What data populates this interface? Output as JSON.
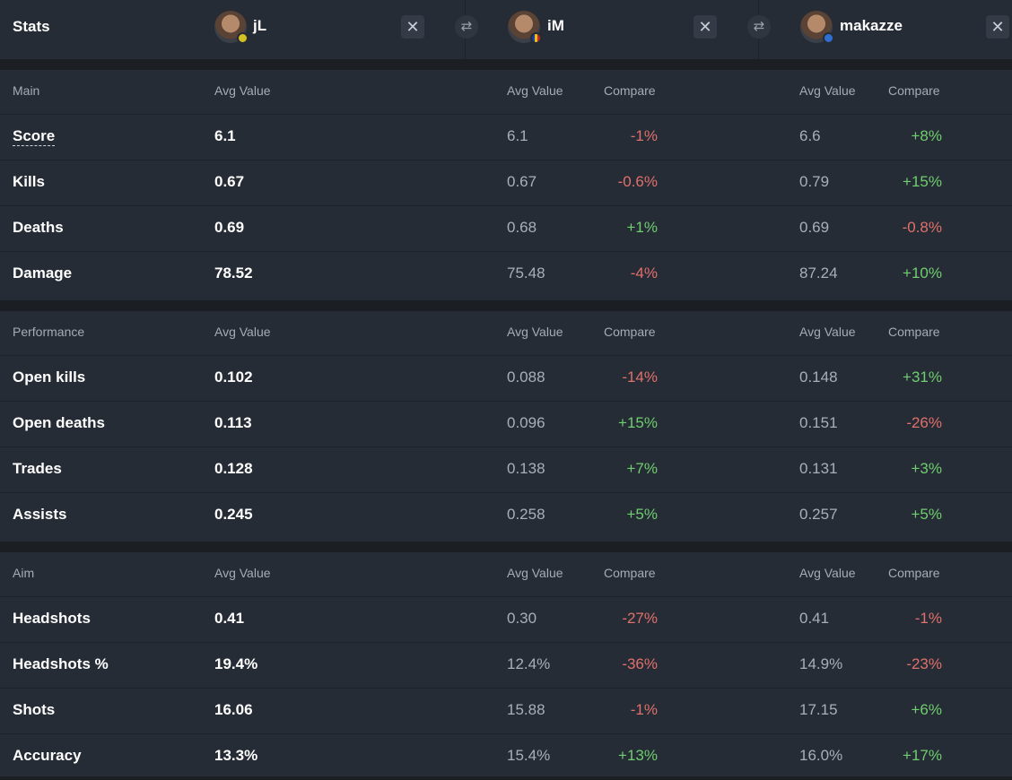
{
  "header": {
    "title": "Stats",
    "players": [
      {
        "name": "jL",
        "flag_color": "#d4c021"
      },
      {
        "name": "iM",
        "flag_color": "#e8c21a"
      },
      {
        "name": "makazze",
        "flag_color": "#2f6fd1"
      }
    ],
    "close_symbol": "✕",
    "swap_symbol": "⇄"
  },
  "sections": [
    {
      "name": "Main",
      "col_avg": "Avg Value",
      "col_compare": "Compare",
      "rows": [
        {
          "stat": "Score",
          "v1": "6.1",
          "v2": "6.1",
          "c2": "-1%",
          "v3": "6.6",
          "c3": "+8%"
        },
        {
          "stat": "Kills",
          "v1": "0.67",
          "v2": "0.67",
          "c2": "-0.6%",
          "v3": "0.79",
          "c3": "+15%"
        },
        {
          "stat": "Deaths",
          "v1": "0.69",
          "v2": "0.68",
          "c2": "+1%",
          "v3": "0.69",
          "c3": "-0.8%"
        },
        {
          "stat": "Damage",
          "v1": "78.52",
          "v2": "75.48",
          "c2": "-4%",
          "v3": "87.24",
          "c3": "+10%"
        }
      ]
    },
    {
      "name": "Performance",
      "col_avg": "Avg Value",
      "col_compare": "Compare",
      "rows": [
        {
          "stat": "Open kills",
          "v1": "0.102",
          "v2": "0.088",
          "c2": "-14%",
          "v3": "0.148",
          "c3": "+31%"
        },
        {
          "stat": "Open deaths",
          "v1": "0.113",
          "v2": "0.096",
          "c2": "+15%",
          "v3": "0.151",
          "c3": "-26%"
        },
        {
          "stat": "Trades",
          "v1": "0.128",
          "v2": "0.138",
          "c2": "+7%",
          "v3": "0.131",
          "c3": "+3%"
        },
        {
          "stat": "Assists",
          "v1": "0.245",
          "v2": "0.258",
          "c2": "+5%",
          "v3": "0.257",
          "c3": "+5%"
        }
      ]
    },
    {
      "name": "Aim",
      "col_avg": "Avg Value",
      "col_compare": "Compare",
      "rows": [
        {
          "stat": "Headshots",
          "v1": "0.41",
          "v2": "0.30",
          "c2": "-27%",
          "v3": "0.41",
          "c3": "-1%"
        },
        {
          "stat": "Headshots %",
          "v1": "19.4%",
          "v2": "12.4%",
          "c2": "-36%",
          "v3": "14.9%",
          "c3": "-23%"
        },
        {
          "stat": "Shots",
          "v1": "16.06",
          "v2": "15.88",
          "c2": "-1%",
          "v3": "17.15",
          "c3": "+6%"
        },
        {
          "stat": "Accuracy",
          "v1": "13.3%",
          "v2": "15.4%",
          "c2": "+13%",
          "v3": "16.0%",
          "c3": "+17%"
        }
      ]
    }
  ],
  "colors": {
    "positive": "#6fce6f",
    "negative": "#e0706c"
  }
}
